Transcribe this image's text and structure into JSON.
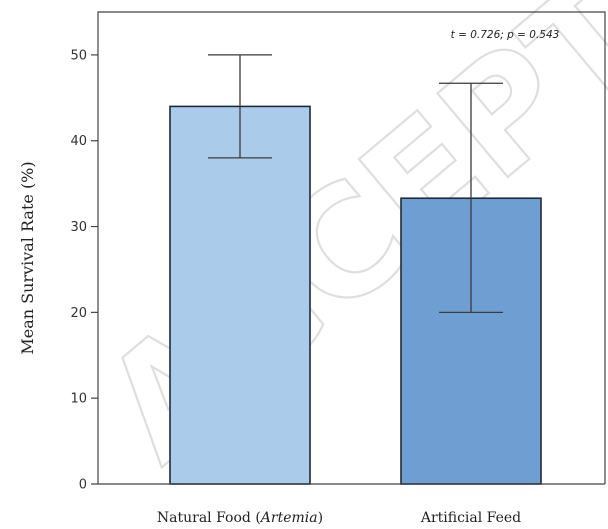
{
  "chart_data": {
    "type": "bar",
    "categories": [
      "Natural Food (",
      "Artificial Feed"
    ],
    "category_italic_parts": [
      "Artemia"
    ],
    "category_suffixes": [
      ")"
    ],
    "values": [
      44,
      33.3
    ],
    "error_low": [
      38,
      20
    ],
    "error_high": [
      50,
      46.7
    ],
    "bar_colors": [
      "#aacbea",
      "#6f9fd2"
    ],
    "ylabel": "Mean Survival Rate (%)",
    "ylim": [
      0,
      55
    ],
    "yticks": [
      0,
      10,
      20,
      30,
      40,
      50
    ],
    "annotation": "t = 0.726; p = 0.543",
    "grid": false,
    "watermark": "ACCEPTED"
  }
}
